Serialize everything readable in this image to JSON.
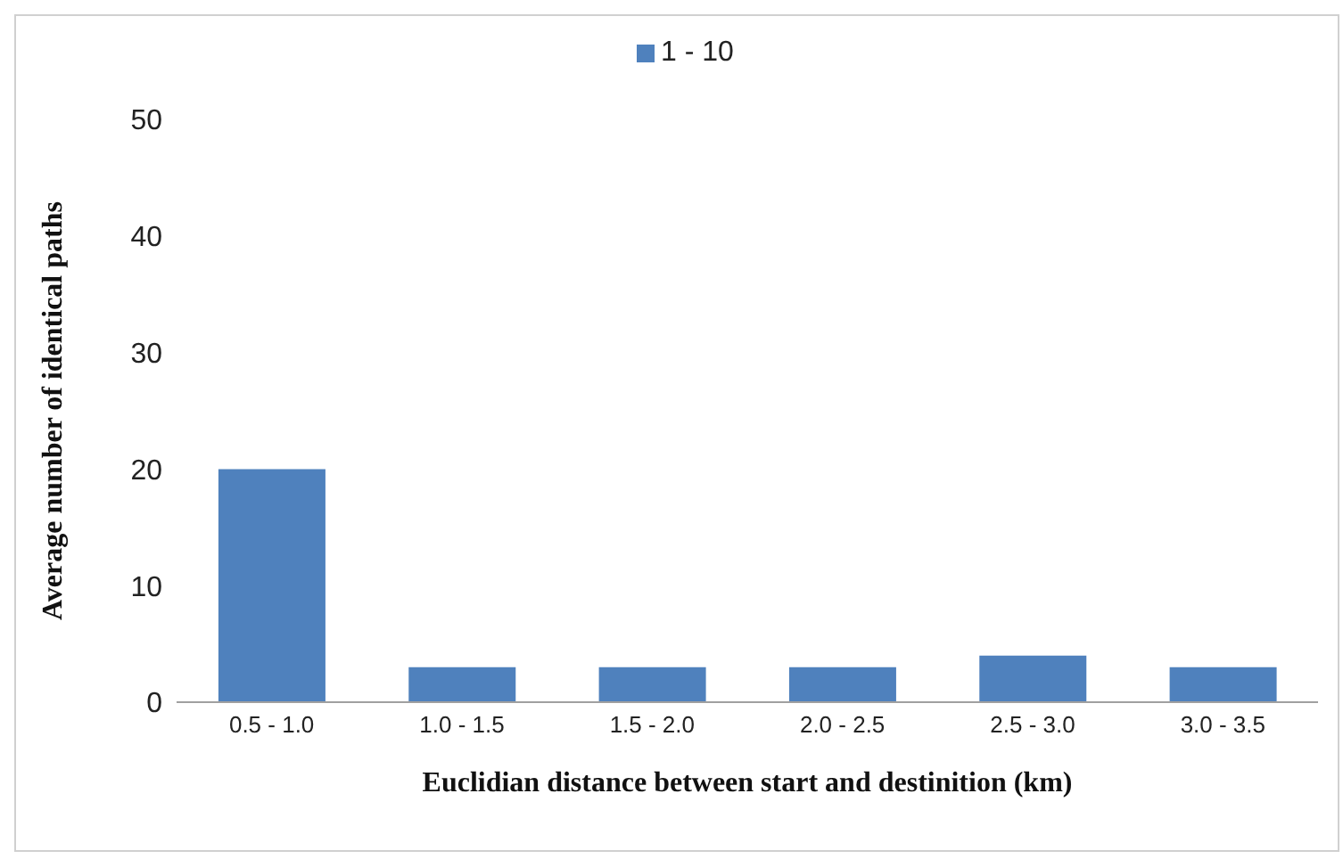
{
  "chart_data": {
    "type": "bar",
    "xlabel": "Euclidian distance between start and destinition (km)",
    "ylabel": "Average number  of identical paths",
    "categories": [
      "0.5 - 1.0",
      "1.0 - 1.5",
      "1.5 - 2.0",
      "2.0 - 2.5",
      "2.5 - 3.0",
      "3.0 - 3.5"
    ],
    "series": [
      {
        "name": "1 - 10",
        "color": "#4f81bd",
        "values": [
          20,
          3,
          3,
          3,
          4,
          3
        ]
      }
    ],
    "ylim": [
      0,
      50
    ],
    "yticks": [
      0,
      10,
      20,
      30,
      40,
      50
    ],
    "grid": false,
    "legend": "top"
  }
}
